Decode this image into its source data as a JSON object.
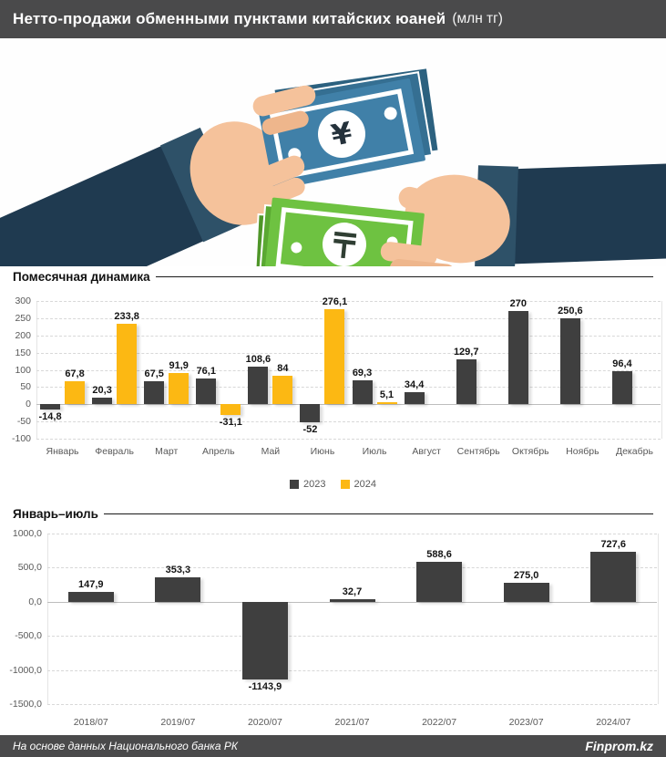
{
  "header": {
    "title": "Нетто-продажи обменными пунктами китайских юаней",
    "units": "(млн тг)"
  },
  "illustration": {
    "yuan_symbol": "¥",
    "tenge_symbol": "₸"
  },
  "footer": {
    "source": "На основе данных Национального банка РК",
    "brand": "Finprom.kz"
  },
  "chart_data": [
    {
      "type": "bar",
      "title": "Помесячная динамика",
      "categories": [
        "Январь",
        "Февраль",
        "Март",
        "Апрель",
        "Май",
        "Июнь",
        "Июль",
        "Август",
        "Сентябрь",
        "Октябрь",
        "Ноябрь",
        "Декабрь"
      ],
      "series": [
        {
          "name": "2023",
          "color": "#3f3f3f",
          "values": [
            -14.8,
            20.3,
            67.5,
            76.1,
            108.6,
            -52,
            69.3,
            34.4,
            129.7,
            270,
            250.6,
            96.4
          ],
          "labels": [
            "-14,8",
            "20,3",
            "67,5",
            "76,1",
            "108,6",
            "-52",
            "69,3",
            "34,4",
            "129,7",
            "270",
            "250,6",
            "96,4"
          ]
        },
        {
          "name": "2024",
          "color": "#fcb813",
          "values": [
            67.8,
            233.8,
            91.9,
            -31.1,
            84,
            276.1,
            5.1,
            null,
            null,
            null,
            null,
            null
          ],
          "labels": [
            "67,8",
            "233,8",
            "91,9",
            "-31,1",
            "84",
            "276,1",
            "5,1",
            "",
            "",
            "",
            "",
            ""
          ]
        }
      ],
      "ylim": [
        -100,
        300
      ],
      "yticks": [
        "300",
        "250",
        "200",
        "150",
        "100",
        "50",
        "0",
        "-50",
        "-100"
      ],
      "grid": "dashed-horizontal",
      "legend_position": "bottom"
    },
    {
      "type": "bar",
      "title": "Январь–июль",
      "categories": [
        "2018/07",
        "2019/07",
        "2020/07",
        "2021/07",
        "2022/07",
        "2023/07",
        "2024/07"
      ],
      "series": [
        {
          "name": "",
          "color": "#3f3f3f",
          "values": [
            147.9,
            353.3,
            -1143.9,
            32.7,
            588.6,
            275.0,
            727.6
          ],
          "labels": [
            "147,9",
            "353,3",
            "-1143,9",
            "32,7",
            "588,6",
            "275,0",
            "727,6"
          ]
        }
      ],
      "ylim": [
        -1500,
        1000
      ],
      "yticks": [
        "1000,0",
        "500,0",
        "0,0",
        "-500,0",
        "-1000,0",
        "-1500,0"
      ],
      "grid": "dashed-horizontal",
      "legend_position": "none"
    }
  ]
}
